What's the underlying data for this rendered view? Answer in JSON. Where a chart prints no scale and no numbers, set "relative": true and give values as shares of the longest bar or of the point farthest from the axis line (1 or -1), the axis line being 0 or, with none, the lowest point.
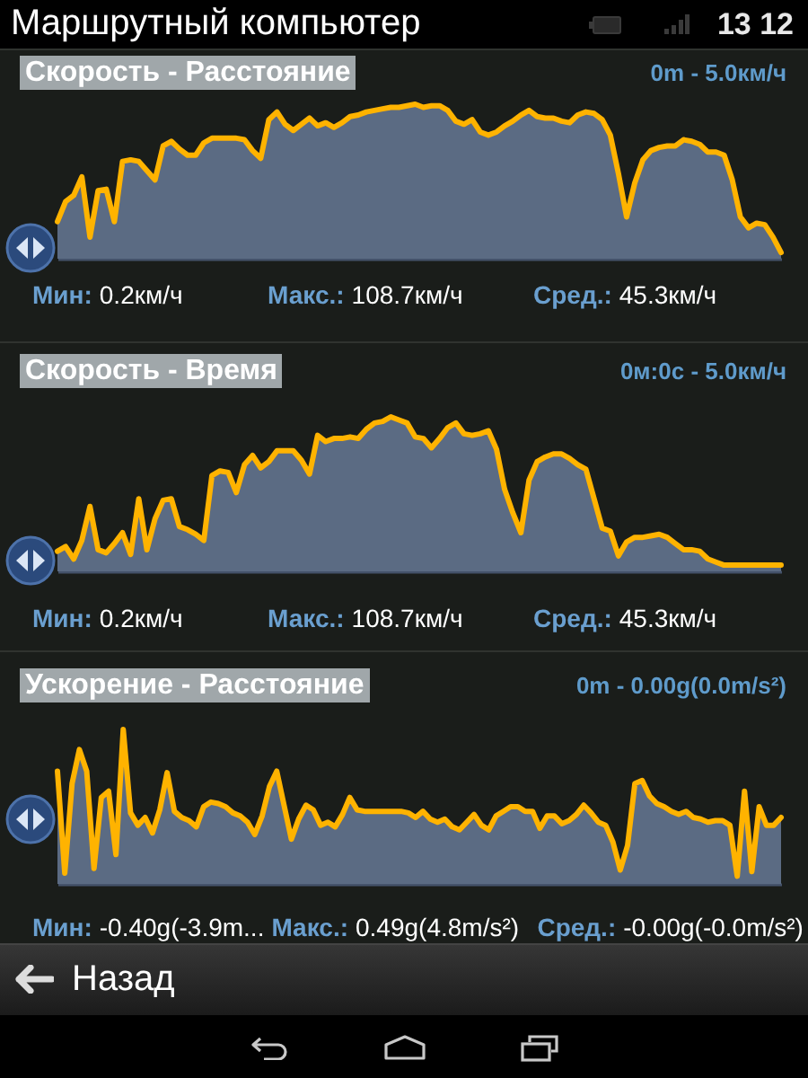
{
  "chart_data": [
    {
      "type": "area",
      "title": "Скорость - Расстояние",
      "relative": true,
      "color": "#ffb300",
      "annotations": [
        "0m - 5.0км/ч",
        "Мин:",
        "0.2км/ч",
        "Макс.:",
        "108.7км/ч",
        "Сред.:",
        "45.3км/ч",
        "Маршрутный компьютер",
        "13 12"
      ],
      "categories": [
        null,
        null,
        null,
        null,
        null,
        null,
        null,
        null,
        null,
        null,
        null,
        null,
        null,
        null,
        null,
        null,
        null,
        null,
        null,
        null,
        null,
        null,
        null,
        null,
        null,
        null,
        null,
        null,
        null,
        null,
        null,
        null,
        null,
        null,
        null,
        null,
        null,
        null,
        null,
        null,
        null,
        null,
        null,
        null,
        null,
        null,
        null,
        null,
        null,
        null,
        null,
        null,
        null,
        null,
        null,
        null,
        null,
        null,
        null,
        null,
        null,
        null,
        null,
        null,
        null,
        null,
        null,
        null,
        null,
        null,
        null,
        null,
        null,
        null,
        null,
        null,
        null,
        null,
        null,
        null,
        null,
        null,
        null,
        null,
        null,
        null,
        null,
        null,
        null,
        null
      ],
      "values": [
        0.24,
        0.37,
        0.41,
        0.53,
        0.14,
        0.44,
        0.45,
        0.24,
        0.63,
        0.64,
        0.63,
        0.57,
        0.51,
        0.73,
        0.76,
        0.71,
        0.67,
        0.67,
        0.75,
        0.78,
        0.78,
        0.78,
        0.78,
        0.77,
        0.7,
        0.65,
        0.9,
        0.95,
        0.87,
        0.83,
        0.87,
        0.91,
        0.86,
        0.88,
        0.85,
        0.88,
        0.92,
        0.93,
        0.95,
        0.96,
        0.97,
        0.98,
        0.98,
        0.99,
        1.0,
        0.98,
        0.99,
        0.99,
        0.96,
        0.89,
        0.87,
        0.9,
        0.82,
        0.8,
        0.82,
        0.86,
        0.89,
        0.93,
        0.96,
        0.92,
        0.91,
        0.91,
        0.89,
        0.88,
        0.93,
        0.95,
        0.94,
        0.9,
        0.8,
        0.55,
        0.27,
        0.49,
        0.64,
        0.7,
        0.72,
        0.73,
        0.73,
        0.77,
        0.76,
        0.74,
        0.69,
        0.69,
        0.67,
        0.51,
        0.27,
        0.2,
        0.23,
        0.22,
        0.14,
        0.04
      ]
    },
    {
      "type": "area",
      "title": "Скорость - Время",
      "relative": true,
      "color": "#ffb300",
      "annotations": [
        "0м:0с - 5.0км/ч",
        "Мин:",
        "0.2км/ч",
        "Макс.:",
        "108.7км/ч",
        "Сред.:",
        "45.3км/ч"
      ],
      "categories": [
        null,
        null,
        null,
        null,
        null,
        null,
        null,
        null,
        null,
        null,
        null,
        null,
        null,
        null,
        null,
        null,
        null,
        null,
        null,
        null,
        null,
        null,
        null,
        null,
        null,
        null,
        null,
        null,
        null,
        null,
        null,
        null,
        null,
        null,
        null,
        null,
        null,
        null,
        null,
        null,
        null,
        null,
        null,
        null,
        null,
        null,
        null,
        null,
        null,
        null,
        null,
        null,
        null,
        null,
        null,
        null,
        null,
        null,
        null,
        null,
        null,
        null,
        null,
        null,
        null,
        null,
        null,
        null,
        null,
        null,
        null,
        null,
        null,
        null,
        null,
        null,
        null,
        null,
        null,
        null,
        null,
        null,
        null,
        null,
        null,
        null,
        null,
        null,
        null,
        null
      ],
      "values": [
        0.13,
        0.16,
        0.08,
        0.2,
        0.42,
        0.14,
        0.12,
        0.18,
        0.25,
        0.11,
        0.47,
        0.14,
        0.34,
        0.46,
        0.47,
        0.29,
        0.27,
        0.24,
        0.2,
        0.62,
        0.65,
        0.64,
        0.51,
        0.69,
        0.75,
        0.67,
        0.71,
        0.78,
        0.78,
        0.78,
        0.72,
        0.63,
        0.88,
        0.84,
        0.86,
        0.86,
        0.87,
        0.86,
        0.92,
        0.96,
        0.97,
        1.0,
        0.98,
        0.96,
        0.87,
        0.86,
        0.8,
        0.86,
        0.93,
        0.96,
        0.89,
        0.88,
        0.89,
        0.91,
        0.79,
        0.53,
        0.38,
        0.25,
        0.59,
        0.71,
        0.74,
        0.76,
        0.76,
        0.73,
        0.69,
        0.66,
        0.47,
        0.28,
        0.26,
        0.1,
        0.19,
        0.22,
        0.22,
        0.23,
        0.24,
        0.22,
        0.18,
        0.14,
        0.14,
        0.13,
        0.08,
        0.06,
        0.04,
        0.04,
        0.04,
        0.04,
        0.04,
        0.04,
        0.04,
        0.04
      ]
    },
    {
      "type": "area",
      "title": "Ускорение - Расстояние",
      "relative": true,
      "color": "#ffb300",
      "annotations": [
        "0m - 0.00g(0.0m/s²)",
        "Мин:",
        "-0.40g(-3.9m...",
        "Макс.:",
        "0.49g(4.8m/s²)",
        "Сред.:",
        "-0.00g(-0.0m/s²)",
        "Назад"
      ],
      "categories": [
        null,
        null,
        null,
        null,
        null,
        null,
        null,
        null,
        null,
        null,
        null,
        null,
        null,
        null,
        null,
        null,
        null,
        null,
        null,
        null,
        null,
        null,
        null,
        null,
        null,
        null,
        null,
        null,
        null,
        null,
        null,
        null,
        null,
        null,
        null,
        null,
        null,
        null,
        null,
        null,
        null,
        null,
        null,
        null,
        null,
        null,
        null,
        null,
        null,
        null,
        null,
        null,
        null,
        null,
        null,
        null,
        null,
        null,
        null,
        null,
        null,
        null,
        null,
        null,
        null,
        null,
        null,
        null,
        null,
        null,
        null,
        null,
        null,
        null,
        null,
        null,
        null,
        null,
        null,
        null,
        null,
        null,
        null,
        null,
        null,
        null,
        null,
        null,
        null,
        null,
        null,
        null,
        null,
        null,
        null,
        null,
        null,
        null,
        null,
        null
      ],
      "values": [
        0.73,
        0.07,
        0.65,
        0.87,
        0.73,
        0.1,
        0.56,
        0.6,
        0.19,
        1.0,
        0.46,
        0.38,
        0.43,
        0.33,
        0.48,
        0.72,
        0.47,
        0.43,
        0.41,
        0.37,
        0.5,
        0.53,
        0.52,
        0.5,
        0.46,
        0.44,
        0.4,
        0.32,
        0.44,
        0.63,
        0.73,
        0.51,
        0.29,
        0.42,
        0.51,
        0.48,
        0.38,
        0.4,
        0.37,
        0.45,
        0.56,
        0.48,
        0.47,
        0.47,
        0.47,
        0.47,
        0.47,
        0.47,
        0.46,
        0.43,
        0.47,
        0.42,
        0.4,
        0.42,
        0.37,
        0.35,
        0.4,
        0.45,
        0.38,
        0.35,
        0.44,
        0.47,
        0.5,
        0.5,
        0.47,
        0.47,
        0.36,
        0.44,
        0.44,
        0.39,
        0.41,
        0.45,
        0.51,
        0.46,
        0.4,
        0.38,
        0.27,
        0.09,
        0.25,
        0.65,
        0.67,
        0.57,
        0.52,
        0.5,
        0.47,
        0.45,
        0.47,
        0.43,
        0.42,
        0.4,
        0.41,
        0.41,
        0.38,
        0.05,
        0.6,
        0.08,
        0.5,
        0.38,
        0.38,
        0.43
      ]
    }
  ]
}
